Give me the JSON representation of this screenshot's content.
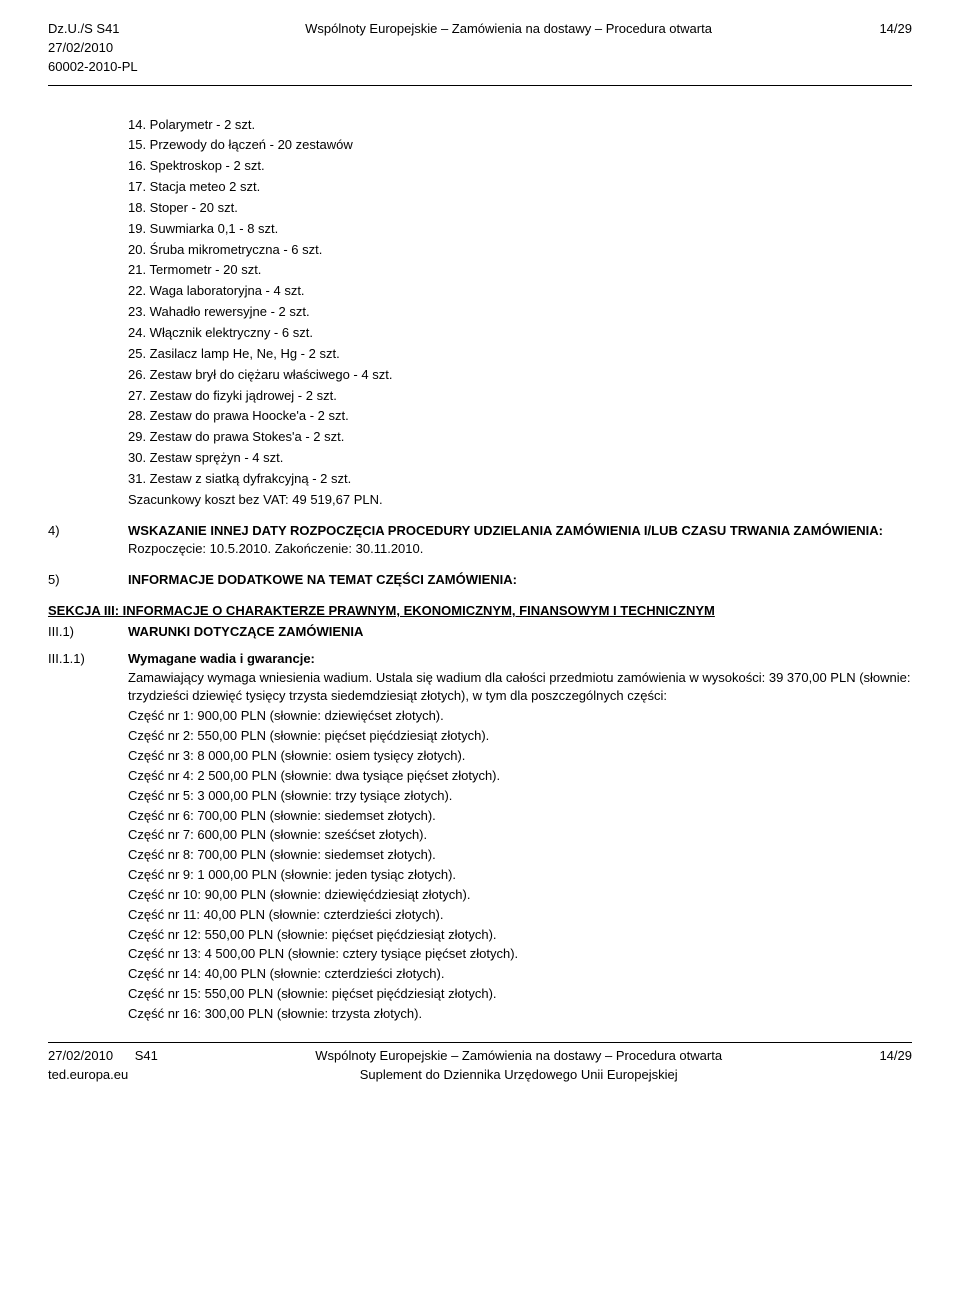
{
  "header": {
    "refLine1": "Dz.U./S S41",
    "refLine2": "27/02/2010",
    "refLine3": "60002-2010-PL",
    "centerTitle": "Wspólnoty Europejskie – Zamówienia na dostawy – Procedura otwarta",
    "pageNum": "14/29"
  },
  "equipmentItems": [
    "14. Polarymetr - 2 szt.",
    "15. Przewody do łączeń - 20 zestawów",
    "16. Spektroskop - 2 szt.",
    "17. Stacja meteo 2 szt.",
    "18. Stoper - 20 szt.",
    "19. Suwmiarka 0,1 - 8 szt.",
    "20. Śruba mikrometryczna - 6 szt.",
    "21. Termometr - 20 szt.",
    "22. Waga laboratoryjna - 4 szt.",
    "23. Wahadło rewersyjne - 2 szt.",
    "24. Włącznik elektryczny - 6 szt.",
    "25. Zasilacz lamp He, Ne, Hg - 2 szt.",
    "26. Zestaw brył do ciężaru właściwego - 4 szt.",
    "27. Zestaw do fizyki jądrowej - 2 szt.",
    "28. Zestaw do prawa Hoocke'a - 2 szt.",
    "29. Zestaw do prawa Stokes'a - 2 szt.",
    "30. Zestaw sprężyn - 4 szt.",
    "31. Zestaw z siatką dyfrakcyjną - 2 szt."
  ],
  "costLine": "Szacunkowy koszt bez VAT: 49 519,67 PLN.",
  "section4": {
    "num": "4)",
    "title": "WSKAZANIE INNEJ DATY ROZPOCZĘCIA PROCEDURY UDZIELANIA ZAMÓWIENIA I/LUB CZASU TRWANIA ZAMÓWIENIA:",
    "dates": "Rozpoczęcie: 10.5.2010. Zakończenie: 30.11.2010."
  },
  "section5": {
    "num": "5)",
    "title": "INFORMACJE DODATKOWE NA TEMAT CZĘŚCI ZAMÓWIENIA:"
  },
  "sekcjaTitle": "SEKCJA III: INFORMACJE O CHARAKTERZE PRAWNYM, EKONOMICZNYM, FINANSOWYM I TECHNICZNYM",
  "iii1": {
    "num": "III.1)",
    "title": "WARUNKI DOTYCZĄCE ZAMÓWIENIA"
  },
  "iii11": {
    "num": "III.1.1)",
    "title": "Wymagane wadia i gwarancje:",
    "intro": "Zamawiający wymaga wniesienia wadium. Ustala się wadium dla całości przedmiotu zamówienia w wysokości: 39 370,00 PLN (słownie: trzydzieści dziewięć tysięcy trzysta siedemdziesiąt złotych), w tym dla poszczególnych części:",
    "parts": [
      "Część nr 1: 900,00 PLN (słownie: dziewięćset złotych).",
      "Część nr 2: 550,00 PLN (słownie: pięćset pięćdziesiąt złotych).",
      "Część nr 3: 8 000,00 PLN (słownie: osiem tysięcy złotych).",
      "Część nr 4: 2 500,00 PLN (słownie: dwa tysiące pięćset złotych).",
      "Część nr 5: 3 000,00 PLN (słownie: trzy tysiące złotych).",
      "Część nr 6: 700,00 PLN (słownie: siedemset złotych).",
      "Część nr 7: 600,00 PLN (słownie: sześćset złotych).",
      "Część nr 8: 700,00 PLN (słownie: siedemset złotych).",
      "Część nr 9: 1 000,00 PLN (słownie: jeden tysiąc złotych).",
      "Część nr 10: 90,00 PLN (słownie: dziewięćdziesiąt złotych).",
      "Część nr 11: 40,00 PLN (słownie: czterdzieści złotych).",
      "Część nr 12: 550,00 PLN (słownie: pięćset pięćdziesiąt złotych).",
      "Część nr 13: 4 500,00 PLN (słownie: cztery tysiące pięćset złotych).",
      "Część nr 14: 40,00 PLN (słownie: czterdzieści złotych).",
      "Część nr 15: 550,00 PLN (słownie: pięćset pięćdziesiąt złotych).",
      "Część nr 16: 300,00 PLN (słownie: trzysta złotych)."
    ]
  },
  "footer": {
    "leftLine1": "27/02/2010",
    "leftLine2": "ted.europa.eu",
    "leftS": "S41",
    "centerLine1": "Wspólnoty Europejskie – Zamówienia na dostawy – Procedura otwarta",
    "centerLine2": "Suplement do Dziennika Urzędowego Unii Europejskiej",
    "right": "14/29"
  }
}
